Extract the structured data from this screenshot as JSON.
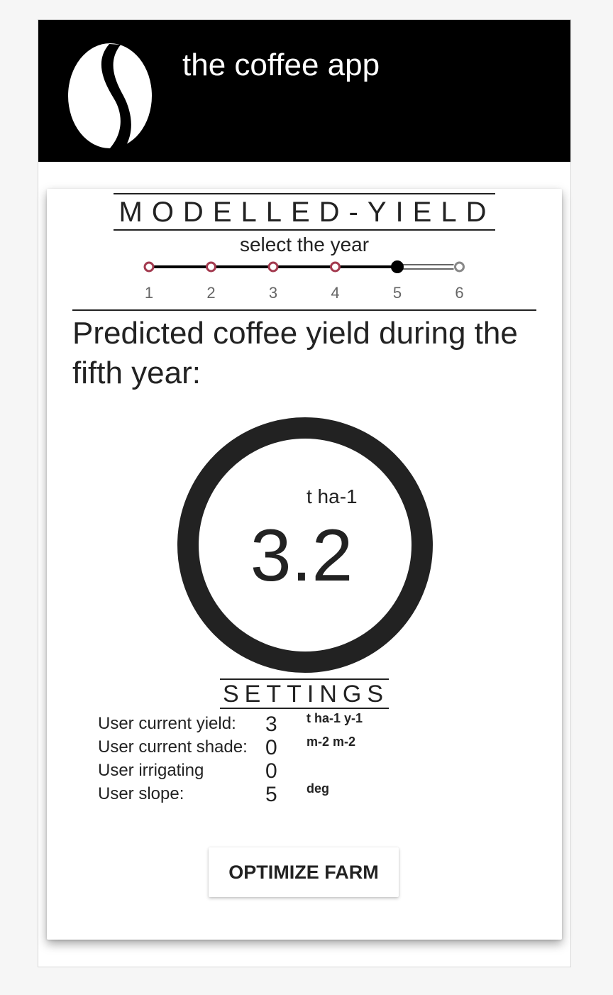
{
  "header": {
    "title": "the coffee app",
    "logo_icon": "coffee-bean-icon"
  },
  "yield_card": {
    "heading": "MODELLED-YIELD",
    "subtitle": "select the year",
    "years": [
      "1",
      "2",
      "3",
      "4",
      "5",
      "6"
    ],
    "selected_year": "5",
    "prediction_text": "Predicted coffee yield during the fifth year:",
    "gauge": {
      "unit": "t ha-1",
      "value": "3.2"
    },
    "settings": {
      "heading": "SETTINGS",
      "rows": [
        {
          "label": "User current yield:",
          "value": "3",
          "unit": "t ha-1 y-1"
        },
        {
          "label": "User current shade:",
          "value": "0",
          "unit": "m-2 m-2"
        },
        {
          "label": "User irrigating",
          "value": "0",
          "unit": ""
        },
        {
          "label": "User slope:",
          "value": "5",
          "unit": "deg"
        }
      ]
    },
    "optimize_button_label": "OPTIMIZE FARM"
  },
  "colors": {
    "header_bg": "#000000",
    "past_step": "#a33a4f",
    "active_step": "#000000",
    "future_step": "#888888"
  }
}
